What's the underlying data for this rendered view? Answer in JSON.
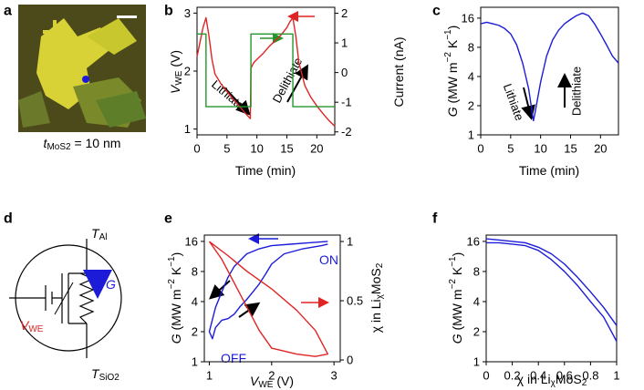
{
  "panels": [
    "a",
    "b",
    "c",
    "d",
    "e",
    "f"
  ],
  "image_caption": [
    "t",
    "MoS2",
    " = 10 nm"
  ],
  "circuit": {
    "top": [
      "T",
      "Al"
    ],
    "bottom": [
      "T",
      "SiO2"
    ],
    "conductance": "G",
    "voltage": [
      "V",
      "WE"
    ]
  },
  "chart_data": [
    {
      "type": "line",
      "xlabel": "Time (min)",
      "ylabel": [
        "V",
        "WE",
        " (V)"
      ],
      "y2label": "Current (nA)",
      "xlim": [
        0,
        23
      ],
      "xticks": [
        0,
        5,
        10,
        15,
        20
      ],
      "ylim": [
        0.9,
        3.1
      ],
      "yticks": [
        1,
        2,
        3
      ],
      "y2lim": [
        -2.1,
        2.2
      ],
      "y2ticks": [
        -2,
        -1,
        0,
        1,
        2
      ],
      "annotations": [
        "Lithiate",
        "Delithiate"
      ],
      "series": [
        {
          "color": "#e02424",
          "x": [
            0,
            0.5,
            1,
            1.5,
            2,
            2.5,
            3,
            4,
            5,
            6,
            7,
            8,
            8.9,
            9,
            9.5,
            10,
            11,
            12,
            13,
            14,
            15,
            15.5,
            16,
            16.5,
            17,
            18,
            19,
            20,
            21,
            22,
            23
          ],
          "values": [
            2.25,
            2.5,
            2.75,
            2.92,
            2.6,
            2.2,
            1.95,
            1.78,
            1.65,
            1.52,
            1.4,
            1.28,
            1.18,
            2.05,
            2.15,
            2.2,
            2.3,
            2.42,
            2.52,
            2.62,
            2.75,
            2.85,
            2.92,
            2.6,
            2.15,
            1.75,
            1.55,
            1.4,
            1.27,
            1.15,
            1.05
          ]
        },
        {
          "color": "#22962a",
          "axis": "y2",
          "x": [
            0,
            1.5,
            1.5,
            9,
            9,
            16,
            16,
            23
          ],
          "values": [
            1.3,
            1.3,
            -1.15,
            -1.15,
            1.3,
            1.3,
            -1.15,
            -1.15
          ]
        }
      ]
    },
    {
      "type": "line",
      "xlabel": "Time (min)",
      "ylabel": [
        "G",
        " (MW m",
        "−2",
        " K",
        "−1",
        ")"
      ],
      "xlim": [
        0,
        23
      ],
      "xticks": [
        0,
        5,
        10,
        15,
        20
      ],
      "ylim": [
        1,
        20.7
      ],
      "yticks": [
        1,
        2,
        4,
        8,
        16
      ],
      "ylog": true,
      "annotations": [
        "Lithiate",
        "Delithiate"
      ],
      "x": [
        0,
        1,
        2,
        3,
        4,
        5,
        6,
        7,
        8,
        8.8,
        9,
        10,
        11,
        12,
        13,
        14,
        15,
        16,
        17,
        18,
        19,
        20,
        21,
        22,
        23
      ],
      "series": [
        {
          "color": "#1c1cd8",
          "values": [
            14,
            14.5,
            14,
            13.5,
            12.5,
            11,
            8.5,
            5.5,
            3,
            1.4,
            1.6,
            3.5,
            6.5,
            9.5,
            12,
            14,
            15.5,
            17,
            18,
            17,
            14,
            11,
            8.5,
            6.5,
            5.5
          ]
        }
      ]
    },
    {
      "type": "line",
      "xlabel": [
        "V",
        "WE",
        " (V)"
      ],
      "ylabel": [
        "G",
        " (MW m",
        "−2",
        " K",
        "−1",
        ")"
      ],
      "y2label": [
        "χ in Li",
        "χ",
        "MoS",
        "2"
      ],
      "xlim": [
        0.92,
        3.1
      ],
      "xticks": [
        1,
        2,
        3
      ],
      "ylim": [
        1,
        18.5
      ],
      "yticks": [
        1,
        2,
        4,
        8,
        16
      ],
      "ylog": true,
      "y2lim": [
        -0.015,
        1.054
      ],
      "y2ticks": [
        0,
        0.5,
        1
      ],
      "annotations": [
        "ON",
        "OFF"
      ],
      "series": [
        {
          "color": "#1c1cd8",
          "x": [
            2.9,
            2.6,
            2.3,
            2.0,
            1.8,
            1.6,
            1.4,
            1.3,
            1.2,
            1.1,
            1.0,
            1.05,
            1.1,
            1.2,
            1.3,
            1.4,
            1.5,
            1.6,
            1.7,
            1.8,
            1.9,
            2.0,
            2.2,
            2.5,
            2.8,
            2.9
          ],
          "values": [
            16,
            15.5,
            15,
            14.5,
            13.5,
            12,
            9,
            7,
            5,
            3.5,
            2,
            1.7,
            2.2,
            2.6,
            2.7,
            3,
            3.6,
            4.2,
            5,
            6,
            7.5,
            9.5,
            12,
            13.5,
            14.5,
            15
          ]
        },
        {
          "color": "#e02424",
          "axis": "y2",
          "x": [
            1.0,
            1.3,
            1.6,
            2.0,
            2.4,
            2.7,
            2.9,
            2.7,
            2.4,
            2.0,
            1.8,
            1.6,
            1.4,
            1.2,
            1.0
          ],
          "values": [
            1.0,
            0.88,
            0.75,
            0.6,
            0.42,
            0.25,
            0.05,
            0.03,
            0.05,
            0.1,
            0.25,
            0.45,
            0.65,
            0.85,
            1.0
          ]
        }
      ]
    },
    {
      "type": "line",
      "xlabel": [
        "χ in Li",
        "χ",
        "MoS",
        "2"
      ],
      "ylabel": [
        "G",
        " (MW m",
        "−2",
        " K",
        "−1",
        ")"
      ],
      "xlim": [
        0,
        1
      ],
      "xticks": [
        0,
        0.2,
        0.4,
        0.6,
        0.8,
        1
      ],
      "ylim": [
        1,
        18.5
      ],
      "yticks": [
        1,
        2,
        4,
        8,
        16
      ],
      "ylog": true,
      "series": [
        {
          "color": "#1c1cd8",
          "x": [
            0,
            0.1,
            0.2,
            0.3,
            0.4,
            0.5,
            0.6,
            0.7,
            0.8,
            0.9,
            1.0
          ],
          "values": [
            17,
            16.5,
            16,
            15.5,
            14,
            12,
            9.5,
            7,
            5,
            3.5,
            2.3
          ]
        },
        {
          "color": "#1c1cd8",
          "x": [
            0,
            0.1,
            0.2,
            0.3,
            0.4,
            0.5,
            0.6,
            0.7,
            0.8,
            0.9,
            1.0
          ],
          "values": [
            15.5,
            15.5,
            15,
            14.5,
            13,
            10.5,
            8,
            5.8,
            4,
            2.8,
            1.6
          ]
        }
      ]
    }
  ]
}
